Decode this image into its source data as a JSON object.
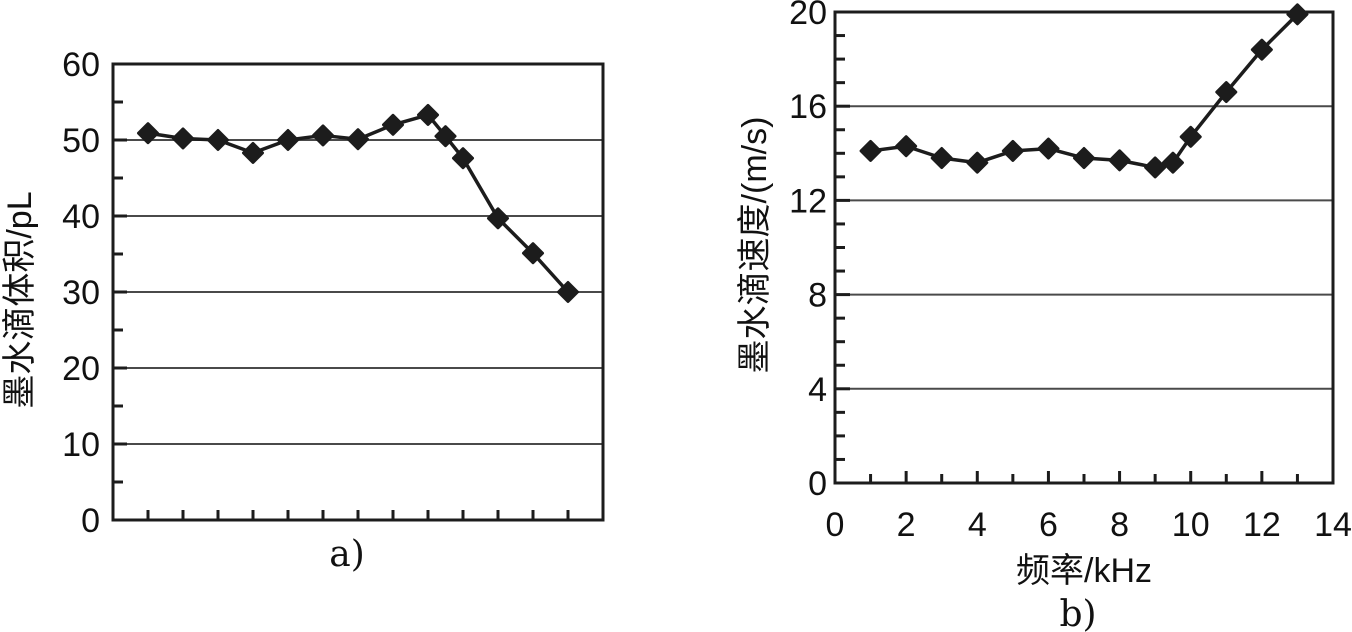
{
  "figure": {
    "description": "Two-panel line chart figure with diamond markers",
    "panel_a_caption": "a)",
    "panel_b_caption": "b)"
  },
  "colors": {
    "background": "#ffffff",
    "series": "#1c1c1c",
    "frame": "#1c1c1c",
    "grid": "#4a4a4a",
    "text": "#111111"
  },
  "chart_data": [
    {
      "type": "line",
      "caption": "a)",
      "title": "",
      "xlabel": "",
      "ylabel": "墨水滴体积/pL",
      "marker": "diamond",
      "legend": "none",
      "grid": "horizontal",
      "xlim": [
        0,
        14
      ],
      "ylim": [
        0,
        60
      ],
      "x": [
        1,
        2,
        3,
        4,
        5,
        6,
        7,
        8,
        9,
        9.5,
        10,
        11,
        12,
        13
      ],
      "y": [
        50.9,
        50.2,
        50.0,
        48.3,
        50.0,
        50.6,
        50.1,
        52.0,
        53.3,
        50.5,
        47.6,
        39.7,
        35.1,
        30.0
      ],
      "yticks": [
        0,
        10,
        20,
        30,
        40,
        50,
        60
      ],
      "yticklabels": [
        "0",
        "10",
        "20",
        "30",
        "40",
        "50",
        "60"
      ],
      "yminorticks": [
        5,
        15,
        25,
        35,
        45,
        55
      ],
      "xticks": [
        1,
        2,
        3,
        4,
        5,
        6,
        7,
        8,
        9,
        10,
        11,
        12,
        13
      ],
      "xticklabels": [],
      "xminorticks": [],
      "gridlines_y": [
        10,
        20,
        30,
        40,
        50
      ]
    },
    {
      "type": "line",
      "caption": "b)",
      "title": "",
      "xlabel": "频率/kHz",
      "ylabel": "墨水滴速度/(m/s)",
      "marker": "diamond",
      "legend": "none",
      "grid": "horizontal",
      "xlim": [
        0,
        14
      ],
      "ylim": [
        0,
        20
      ],
      "x": [
        1,
        2,
        3,
        4,
        5,
        6,
        7,
        8,
        9,
        9.5,
        10,
        11,
        12,
        13
      ],
      "y": [
        14.1,
        14.3,
        13.8,
        13.6,
        14.1,
        14.2,
        13.8,
        13.7,
        13.4,
        13.6,
        14.7,
        16.6,
        18.4,
        19.9
      ],
      "yticks": [
        0,
        4,
        8,
        12,
        16,
        20
      ],
      "yticklabels": [
        "0",
        "4",
        "8",
        "12",
        "16",
        "20"
      ],
      "yminorticks": [
        1,
        2,
        3,
        5,
        6,
        7,
        9,
        10,
        11,
        13,
        14,
        15,
        17,
        18,
        19
      ],
      "xticks": [
        0,
        2,
        4,
        6,
        8,
        10,
        12,
        14
      ],
      "xticklabels": [
        "0",
        "2",
        "4",
        "6",
        "8",
        "10",
        "12",
        "14"
      ],
      "xminorticks": [
        1,
        3,
        5,
        7,
        9,
        11,
        13
      ],
      "gridlines_y": [
        4,
        8,
        12,
        16
      ]
    }
  ]
}
